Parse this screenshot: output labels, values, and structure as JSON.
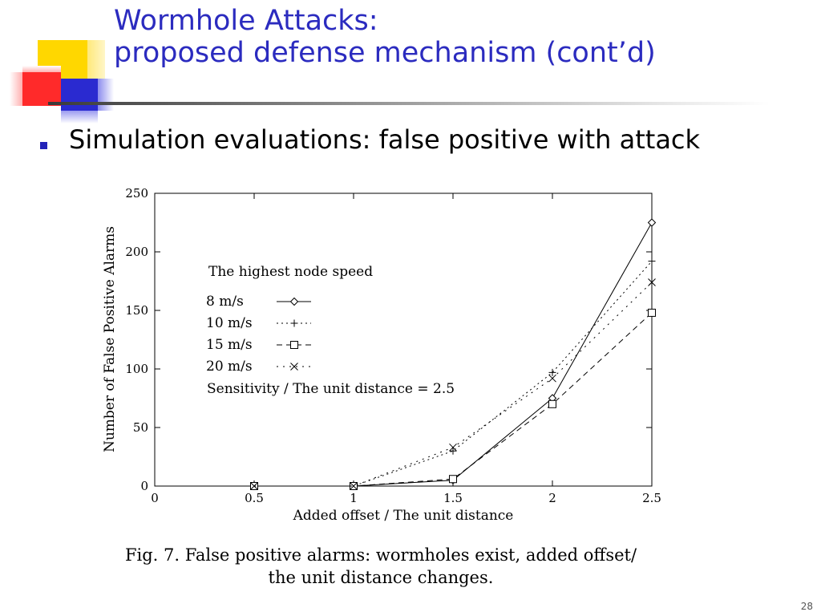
{
  "slide": {
    "title_line1": "Wormhole Attacks:",
    "title_line2": "proposed defense mechanism (cont’d)",
    "bullet": "Simulation evaluations: false positive with attack",
    "caption_line1": "Fig. 7. False positive alarms: wormholes exist, added offset/",
    "caption_line2": "the unit distance changes.",
    "page_number": "28"
  },
  "colors": {
    "title": "#2b2bbf",
    "bullet": "#2323b8",
    "deco_yellow": "#ffd700",
    "deco_blue": "#2a2ad0",
    "deco_red": "#ff2a2a"
  },
  "chart_data": {
    "type": "line",
    "xlabel": "Added offset / The unit distance",
    "ylabel": "Number of False Positive Alarms",
    "x_ticks": [
      "0",
      "0.5",
      "1",
      "1.5",
      "2",
      "2.5"
    ],
    "y_ticks": [
      "0",
      "50",
      "100",
      "150",
      "200",
      "250"
    ],
    "xlim": [
      0,
      2.5
    ],
    "ylim": [
      0,
      250
    ],
    "legend_title": "The highest node speed",
    "annotation": "Sensitivity / The unit distance = 2.5",
    "legend_position": "upper-left inside plot",
    "grid": false,
    "x": [
      0.5,
      1,
      1.5,
      2,
      2.5
    ],
    "series": [
      {
        "name": "8 m/s",
        "values": [
          0,
          0,
          5,
          75,
          225
        ],
        "marker": "diamond",
        "dash": "solid"
      },
      {
        "name": "10 m/s",
        "values": [
          0,
          0,
          30,
          97,
          192
        ],
        "marker": "plus",
        "dash": "dotted"
      },
      {
        "name": "15 m/s",
        "values": [
          0,
          0,
          6,
          70,
          148
        ],
        "marker": "square",
        "dash": "dashed"
      },
      {
        "name": "20 m/s",
        "values": [
          0,
          0,
          33,
          92,
          174
        ],
        "marker": "cross",
        "dash": "dashdot"
      }
    ]
  }
}
